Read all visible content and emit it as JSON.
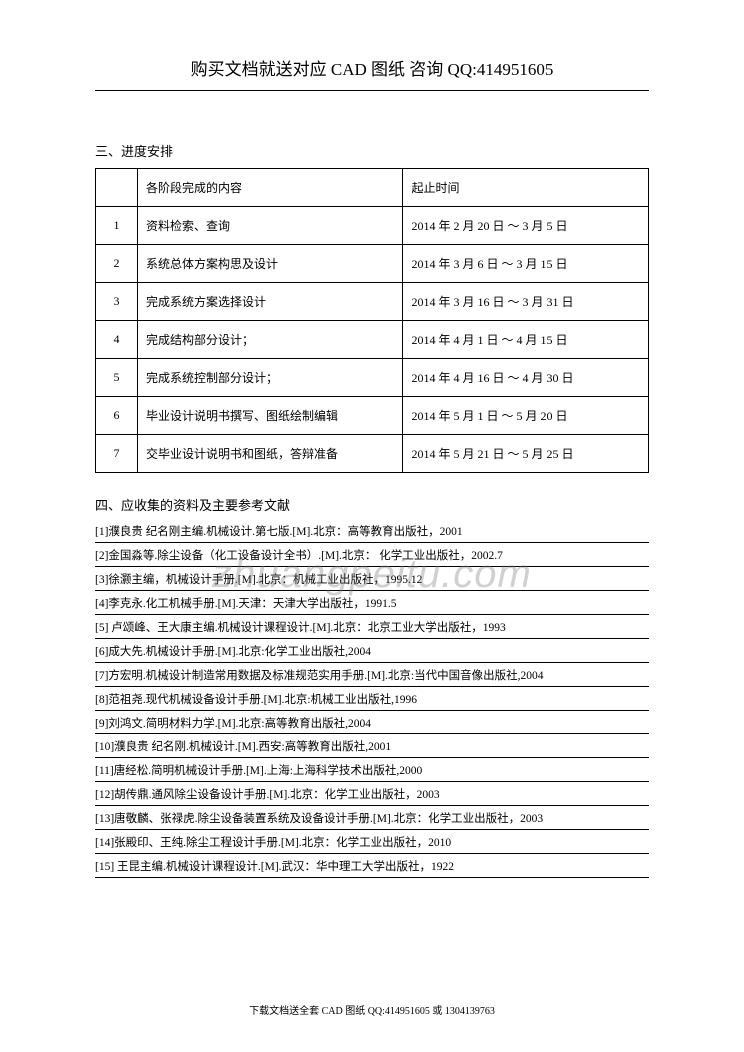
{
  "header": "购买文档就送对应 CAD 图纸  咨询 QQ:414951605",
  "section3_title": "三、进度安排",
  "table": {
    "header_content": "各阶段完成的内容",
    "header_time": "起止时间",
    "rows": [
      {
        "num": "1",
        "content": "资料检索、查询",
        "time": "2014 年 2 月 20 日 ～ 3 月 5 日"
      },
      {
        "num": "2",
        "content": "系统总体方案构思及设计",
        "time": "2014 年 3 月 6 日 ～ 3 月 15 日"
      },
      {
        "num": "3",
        "content": "完成系统方案选择设计",
        "time": "2014 年 3 月 16 日 ～ 3 月 31 日"
      },
      {
        "num": "4",
        "content": "完成结构部分设计；",
        "time": "2014 年 4 月 1 日 ～ 4 月 15 日"
      },
      {
        "num": "5",
        "content": "完成系统控制部分设计；",
        "time": "2014 年 4 月 16 日 ～ 4 月 30 日"
      },
      {
        "num": "6",
        "content": "毕业设计说明书撰写、图纸绘制编辑",
        "time": "2014 年 5 月 1 日 ～ 5 月 20 日"
      },
      {
        "num": "7",
        "content": "交毕业设计说明书和图纸，答辩准备",
        "time": "2014 年 5 月 21 日 ～ 5 月 25 日"
      }
    ]
  },
  "section4_title": "四、应收集的资料及主要参考文献",
  "references": [
    "[1]濮良贵  纪名刚主编.机械设计.第七版.[M].北京：高等教育出版社，2001",
    "[2]金国淼等.除尘设备（化工设备设计全书）.[M].北京： 化学工业出版社，2002.7",
    "[3]徐灏主编，机械设计手册.[M].北京：机械工业出版社，1995.12",
    "[4]李克永.化工机械手册.[M].天津：天津大学出版社，1991.5",
    "[5] 卢颂峰、王大康主编.机械设计课程设计.[M].北京：北京工业大学出版社，1993",
    "[6]成大先.机械设计手册.[M].北京:化学工业出版社,2004",
    "[7]方宏明.机械设计制造常用数据及标准规范实用手册.[M].北京:当代中国音像出版社,2004",
    "[8]范祖尧.现代机械设备设计手册.[M].北京:机械工业出版社,1996",
    "[9]刘鸿文.简明材料力学.[M].北京:高等教育出版社,2004",
    "[10]濮良贵  纪名刚.机械设计.[M].西安:高等教育出版社,2001",
    "[11]唐经松.简明机械设计手册.[M].上海:上海科学技术出版社,2000",
    "[12]胡传鼎.通风除尘设备设计手册.[M].北京：化学工业出版社，2003",
    "[13]唐敬麟、张禄虎.除尘设备装置系统及设备设计手册.[M].北京：化学工业出版社，2003",
    "[14]张殿印、王纯.除尘工程设计手册.[M].北京：化学工业出版社，2010",
    "[15] 王昆主编.机械设计课程设计.[M].武汉：华中理工大学出版社，1922"
  ],
  "watermark": "zhuangpeitu.com",
  "footer": "下载文档送全套 CAD 图纸  QQ:414951605 或 1304139763"
}
